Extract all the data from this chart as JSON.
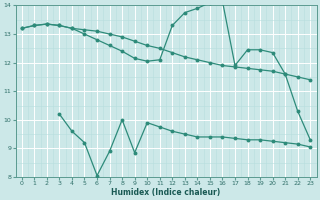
{
  "xlabel": "Humidex (Indice chaleur)",
  "bg_color": "#cce8e8",
  "line_color": "#2e8b7a",
  "grid_major_color": "#ffffff",
  "grid_minor_color": "#b8dede",
  "xlim": [
    -0.5,
    23.5
  ],
  "ylim": [
    8,
    14
  ],
  "yticks": [
    8,
    9,
    10,
    11,
    12,
    13,
    14
  ],
  "xticks": [
    0,
    1,
    2,
    3,
    4,
    5,
    6,
    7,
    8,
    9,
    10,
    11,
    12,
    13,
    14,
    15,
    16,
    17,
    18,
    19,
    20,
    21,
    22,
    23
  ],
  "line1_x": [
    0,
    1,
    2,
    3,
    4,
    5,
    6,
    7,
    8,
    9,
    10,
    11,
    12,
    13,
    14,
    15,
    16,
    17,
    18,
    19,
    20,
    21,
    22,
    23
  ],
  "line1_y": [
    13.2,
    13.3,
    13.35,
    13.3,
    13.2,
    13.15,
    13.1,
    13.0,
    12.9,
    12.75,
    12.6,
    12.5,
    12.35,
    12.2,
    12.1,
    12.0,
    11.9,
    11.85,
    11.8,
    11.75,
    11.7,
    11.6,
    11.5,
    11.4
  ],
  "line2_x": [
    0,
    1,
    2,
    3,
    4,
    5,
    6,
    7,
    8,
    9,
    10,
    11,
    12,
    13,
    14,
    15,
    16,
    17,
    18,
    19,
    20,
    21,
    22,
    23
  ],
  "line2_y": [
    13.2,
    13.3,
    13.35,
    13.3,
    13.2,
    13.0,
    12.8,
    12.6,
    12.4,
    12.15,
    12.05,
    12.1,
    13.3,
    13.75,
    13.9,
    14.1,
    14.15,
    11.9,
    12.45,
    12.45,
    12.35,
    11.6,
    10.3,
    9.3
  ],
  "line3_x": [
    3,
    4,
    5,
    6,
    7,
    8,
    9,
    10,
    11,
    12,
    13,
    14,
    15,
    16,
    17,
    18,
    19,
    20,
    21,
    22,
    23
  ],
  "line3_y": [
    10.2,
    9.6,
    9.2,
    8.05,
    8.9,
    10.0,
    8.85,
    9.9,
    9.75,
    9.6,
    9.5,
    9.4,
    9.4,
    9.4,
    9.35,
    9.3,
    9.3,
    9.25,
    9.2,
    9.15,
    9.05
  ]
}
